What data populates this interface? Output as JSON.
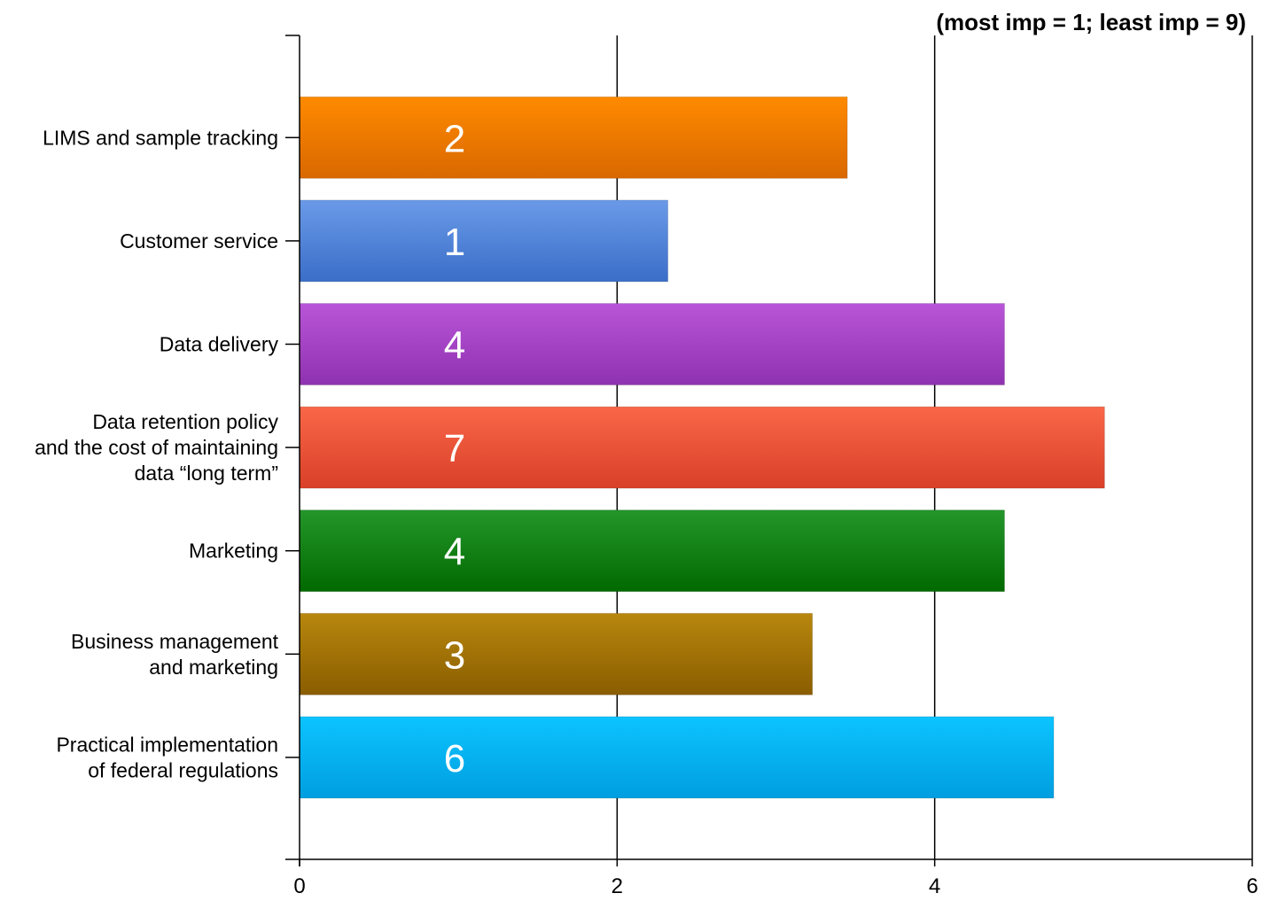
{
  "note": "(most imp = 1; least imp = 9)",
  "chart_data": {
    "type": "bar",
    "orientation": "horizontal",
    "categories": [
      [
        "LIMS and sample tracking"
      ],
      [
        "Customer service"
      ],
      [
        "Data delivery"
      ],
      [
        "Data retention policy",
        "and the cost of maintaining",
        "data “long term”"
      ],
      [
        "Marketing"
      ],
      [
        "Business management",
        "and marketing"
      ],
      [
        "Practical implementation",
        "of federal regulations"
      ]
    ],
    "values": [
      3.45,
      2.32,
      4.44,
      5.07,
      4.44,
      3.23,
      4.75
    ],
    "data_labels": [
      "2",
      "1",
      "4",
      "7",
      "4",
      "3",
      "6"
    ],
    "colors": [
      [
        "#ff8a00",
        "#d96800"
      ],
      [
        "#6a9ae8",
        "#3a6ec8"
      ],
      [
        "#b955d8",
        "#8f32b0"
      ],
      [
        "#f96748",
        "#d94028"
      ],
      [
        "#24962a",
        "#016a00"
      ],
      [
        "#b8870e",
        "#8a5d00"
      ],
      [
        "#0cc4ff",
        "#009ee0"
      ]
    ],
    "xlim": [
      0,
      6
    ],
    "xticks": [
      "0",
      "2",
      "4",
      "6"
    ],
    "grid": "vertical gridlines at major ticks",
    "title": "",
    "xlabel": "",
    "ylabel": ""
  }
}
